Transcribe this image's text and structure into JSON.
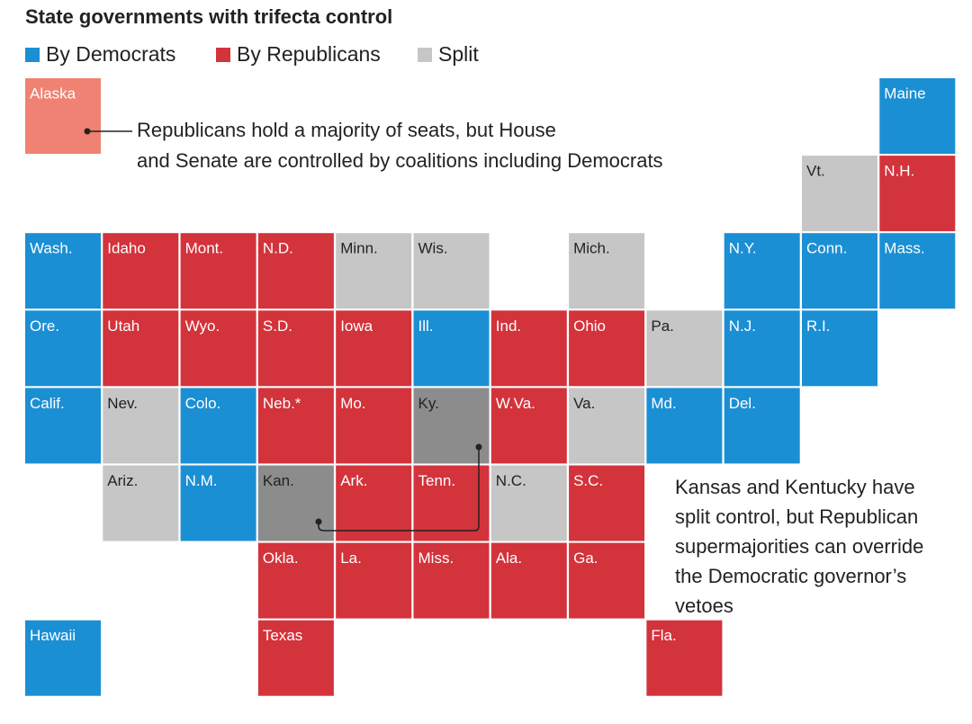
{
  "title": "State governments with trifecta control",
  "legend": [
    {
      "label": "By Democrats",
      "color": "#1b8fd4"
    },
    {
      "label": "By Republicans",
      "color": "#d3333b"
    },
    {
      "label": "Split",
      "color": "#c6c6c6"
    }
  ],
  "tiles": [
    {
      "label": "Alaska",
      "color": "#ef8272"
    },
    {
      "label": "Maine",
      "color": "#1b8fd4"
    },
    {
      "label": "Vt.",
      "color": "#c6c6c6"
    },
    {
      "label": "N.H.",
      "color": "#d3333b"
    },
    {
      "label": "Wash.",
      "color": "#1b8fd4"
    },
    {
      "label": "Idaho",
      "color": "#d3333b"
    },
    {
      "label": "Mont.",
      "color": "#d3333b"
    },
    {
      "label": "N.D.",
      "color": "#d3333b"
    },
    {
      "label": "Minn.",
      "color": "#c6c6c6"
    },
    {
      "label": "Wis.",
      "color": "#c6c6c6"
    },
    {
      "label": "Mich.",
      "color": "#c6c6c6"
    },
    {
      "label": "N.Y.",
      "color": "#1b8fd4"
    },
    {
      "label": "Conn.",
      "color": "#1b8fd4"
    },
    {
      "label": "Mass.",
      "color": "#1b8fd4"
    },
    {
      "label": "Ore.",
      "color": "#1b8fd4"
    },
    {
      "label": "Utah",
      "color": "#d3333b"
    },
    {
      "label": "Wyo.",
      "color": "#d3333b"
    },
    {
      "label": "S.D.",
      "color": "#d3333b"
    },
    {
      "label": "Iowa",
      "color": "#d3333b"
    },
    {
      "label": "Ill.",
      "color": "#1b8fd4"
    },
    {
      "label": "Ind.",
      "color": "#d3333b"
    },
    {
      "label": "Ohio",
      "color": "#d3333b"
    },
    {
      "label": "Pa.",
      "color": "#c6c6c6"
    },
    {
      "label": "N.J.",
      "color": "#1b8fd4"
    },
    {
      "label": "R.I.",
      "color": "#1b8fd4"
    },
    {
      "label": "Calif.",
      "color": "#1b8fd4"
    },
    {
      "label": "Nev.",
      "color": "#c6c6c6"
    },
    {
      "label": "Colo.",
      "color": "#1b8fd4"
    },
    {
      "label": "Neb.*",
      "color": "#d3333b"
    },
    {
      "label": "Mo.",
      "color": "#d3333b"
    },
    {
      "label": "Ky.",
      "color": "#8c8c8c"
    },
    {
      "label": "W.Va.",
      "color": "#d3333b"
    },
    {
      "label": "Va.",
      "color": "#c6c6c6"
    },
    {
      "label": "Md.",
      "color": "#1b8fd4"
    },
    {
      "label": "Del.",
      "color": "#1b8fd4"
    },
    {
      "label": "Ariz.",
      "color": "#c6c6c6"
    },
    {
      "label": "N.M.",
      "color": "#1b8fd4"
    },
    {
      "label": "Kan.",
      "color": "#8c8c8c"
    },
    {
      "label": "Ark.",
      "color": "#d3333b"
    },
    {
      "label": "Tenn.",
      "color": "#d3333b"
    },
    {
      "label": "N.C.",
      "color": "#c6c6c6"
    },
    {
      "label": "S.C.",
      "color": "#d3333b"
    },
    {
      "label": "Okla.",
      "color": "#d3333b"
    },
    {
      "label": "La.",
      "color": "#d3333b"
    },
    {
      "label": "Miss.",
      "color": "#d3333b"
    },
    {
      "label": "Ala.",
      "color": "#d3333b"
    },
    {
      "label": "Ga.",
      "color": "#d3333b"
    },
    {
      "label": "Hawaii",
      "color": "#1b8fd4"
    },
    {
      "label": "Texas",
      "color": "#d3333b"
    },
    {
      "label": "Fla.",
      "color": "#d3333b"
    }
  ],
  "annotations": [
    {
      "lines": [
        "Republicans hold a majority of seats, but House",
        "and Senate are controlled by coalitions including Democrats"
      ]
    },
    {
      "lines": [
        "Kansas and Kentucky have",
        "split control, but Republican",
        "supermajorities can override",
        "the Democratic governor’s",
        "vetoes"
      ]
    }
  ]
}
